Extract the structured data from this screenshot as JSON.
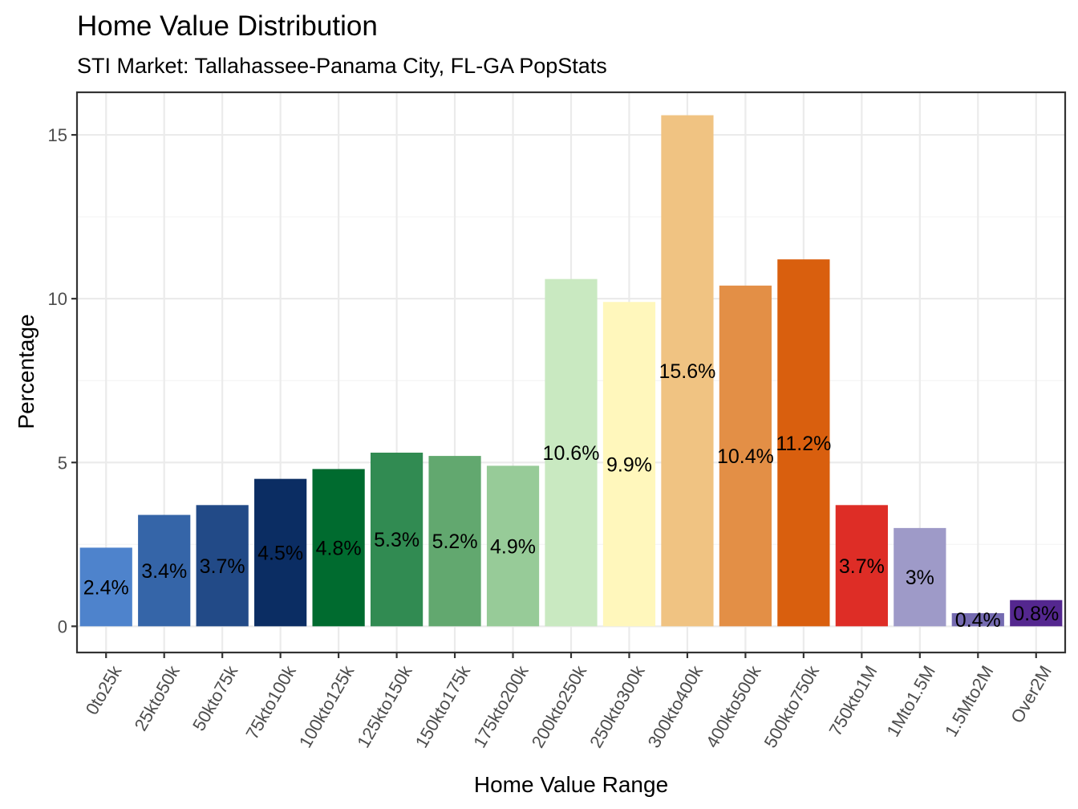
{
  "chart_data": {
    "type": "bar",
    "title": "Home Value Distribution",
    "subtitle": "STI Market: Tallahassee-Panama City, FL-GA PopStats",
    "xlabel": "Home Value Range",
    "ylabel": "Percentage",
    "ylim": [
      -0.8,
      16.3
    ],
    "yticks": [
      0,
      5,
      10,
      15
    ],
    "grid": true,
    "legend": "none",
    "categories": [
      "0to25k",
      "25kto50k",
      "50kto75k",
      "75kto100k",
      "100kto125k",
      "125kto150k",
      "150kto175k",
      "175kto200k",
      "200kto250k",
      "250kto300k",
      "300kto400k",
      "400kto500k",
      "500kto750k",
      "750kto1M",
      "1Mto1.5M",
      "1.5Mto2M",
      "Over2M"
    ],
    "values": [
      2.4,
      3.4,
      3.7,
      4.5,
      4.8,
      5.3,
      5.2,
      4.9,
      10.6,
      9.9,
      15.6,
      10.4,
      11.2,
      3.7,
      3.0,
      0.4,
      0.8
    ],
    "data_labels": [
      "2.4%",
      "3.4%",
      "3.7%",
      "4.5%",
      "4.8%",
      "5.3%",
      "5.2%",
      "4.9%",
      "10.6%",
      "9.9%",
      "15.6%",
      "10.4%",
      "11.2%",
      "3.7%",
      "3%",
      "0.4%",
      "0.8%"
    ],
    "colors": [
      "#4e83cc",
      "#3565a8",
      "#224a87",
      "#0b2d63",
      "#006b2f",
      "#318b52",
      "#62a86f",
      "#97cb98",
      "#c9e9c1",
      "#fff7bc",
      "#f0c382",
      "#e38f46",
      "#d95f0e",
      "#de2d26",
      "#9e9ac8",
      "#756bb1",
      "#54278f"
    ]
  }
}
